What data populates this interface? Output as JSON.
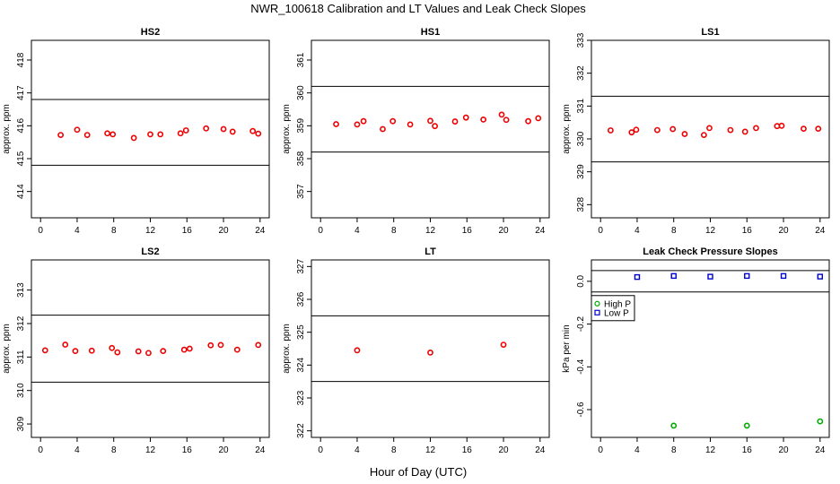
{
  "title": "NWR_100618  Calibration and LT Values and Leak Check Slopes",
  "xlabel": "Hour of Day (UTC)",
  "colors": {
    "point": "#ee0000",
    "high": "#00aa00",
    "low": "#0000cc",
    "line": "#000000"
  },
  "chart_data": [
    {
      "type": "scatter",
      "title": "HS2",
      "ylabel": "approx. ppm",
      "xlim": [
        -1,
        25
      ],
      "ylim": [
        413.2,
        418.6
      ],
      "xticks": [
        0,
        4,
        8,
        12,
        16,
        20,
        24
      ],
      "yticks": [
        414,
        415,
        416,
        417,
        418
      ],
      "hlines": [
        414.8,
        416.8
      ],
      "series": [
        {
          "color": "point",
          "x": [
            2.2,
            4.0,
            5.1,
            7.3,
            7.9,
            10.2,
            12.0,
            13.1,
            15.3,
            15.9,
            18.1,
            20.0,
            21.0,
            23.2,
            23.8
          ],
          "y": [
            415.72,
            415.88,
            415.72,
            415.77,
            415.74,
            415.63,
            415.74,
            415.74,
            415.77,
            415.86,
            415.92,
            415.9,
            415.82,
            415.84,
            415.76
          ]
        }
      ]
    },
    {
      "type": "scatter",
      "title": "HS1",
      "ylabel": "approx. ppm",
      "xlim": [
        -1,
        25
      ],
      "ylim": [
        356.2,
        361.6
      ],
      "xticks": [
        0,
        4,
        8,
        12,
        16,
        20,
        24
      ],
      "yticks": [
        357,
        358,
        359,
        360,
        361
      ],
      "hlines": [
        358.2,
        360.2
      ],
      "series": [
        {
          "color": "point",
          "x": [
            1.7,
            4.0,
            4.7,
            6.8,
            7.9,
            9.8,
            12.0,
            12.5,
            14.7,
            15.9,
            17.8,
            19.8,
            20.3,
            22.7,
            23.8
          ],
          "y": [
            359.05,
            359.04,
            359.14,
            358.9,
            359.14,
            359.04,
            359.15,
            358.99,
            359.13,
            359.25,
            359.19,
            359.34,
            359.18,
            359.14,
            359.23
          ]
        }
      ]
    },
    {
      "type": "scatter",
      "title": "LS1",
      "ylabel": "approx. ppm",
      "xlim": [
        -1,
        25
      ],
      "ylim": [
        327.6,
        333.0
      ],
      "xticks": [
        0,
        4,
        8,
        12,
        16,
        20,
        24
      ],
      "yticks": [
        328,
        329,
        330,
        331,
        332,
        333
      ],
      "hlines": [
        329.3,
        331.3
      ],
      "series": [
        {
          "color": "point",
          "x": [
            1.1,
            3.4,
            3.9,
            6.2,
            7.9,
            9.2,
            11.3,
            11.9,
            14.2,
            15.8,
            17.0,
            19.3,
            19.8,
            22.2,
            23.8
          ],
          "y": [
            330.26,
            330.2,
            330.28,
            330.27,
            330.3,
            330.15,
            330.12,
            330.33,
            330.27,
            330.22,
            330.33,
            330.39,
            330.4,
            330.31,
            330.31
          ]
        }
      ]
    },
    {
      "type": "scatter",
      "title": "LS2",
      "ylabel": "approx. ppm",
      "xlim": [
        -1,
        25
      ],
      "ylim": [
        308.6,
        313.9
      ],
      "xticks": [
        0,
        4,
        8,
        12,
        16,
        20,
        24
      ],
      "yticks": [
        309,
        310,
        311,
        312,
        313
      ],
      "hlines": [
        310.25,
        312.25
      ],
      "series": [
        {
          "color": "point",
          "x": [
            0.5,
            2.7,
            3.8,
            5.6,
            7.8,
            8.4,
            10.7,
            11.8,
            13.4,
            15.7,
            16.3,
            18.6,
            19.7,
            21.5,
            23.8
          ],
          "y": [
            311.2,
            311.37,
            311.18,
            311.19,
            311.27,
            311.14,
            311.17,
            311.12,
            311.18,
            311.22,
            311.25,
            311.35,
            311.36,
            311.22,
            311.36
          ]
        }
      ]
    },
    {
      "type": "scatter",
      "title": "LT",
      "ylabel": "approx. ppm",
      "xlim": [
        -1,
        25
      ],
      "ylim": [
        321.8,
        327.2
      ],
      "xticks": [
        0,
        4,
        8,
        12,
        16,
        20,
        24
      ],
      "yticks": [
        322,
        323,
        324,
        325,
        326,
        327
      ],
      "hlines": [
        323.5,
        325.5
      ],
      "series": [
        {
          "color": "point",
          "x": [
            4.0,
            12.0,
            20.0
          ],
          "y": [
            324.45,
            324.38,
            324.62
          ]
        }
      ]
    },
    {
      "type": "scatter",
      "title": "Leak Check Pressure Slopes",
      "ylabel": "kPa per min",
      "xlim": [
        -1,
        25
      ],
      "ylim": [
        -0.73,
        0.1
      ],
      "xticks": [
        0,
        4,
        8,
        12,
        16,
        20,
        24
      ],
      "yticks": [
        -0.6,
        -0.4,
        -0.2,
        0.0
      ],
      "yticklabels": [
        "-0.6",
        "-0.4",
        "-0.2",
        "0.0"
      ],
      "hlines": [
        -0.05,
        0.05
      ],
      "legend": {
        "position": "top-left",
        "entries": [
          {
            "label": "High P",
            "color": "high"
          },
          {
            "label": "Low P",
            "color": "low"
          }
        ]
      },
      "series": [
        {
          "name": "High P",
          "color": "high",
          "x": [
            8,
            16,
            24
          ],
          "y": [
            -0.675,
            -0.675,
            -0.655
          ]
        },
        {
          "name": "Low P",
          "color": "low",
          "x": [
            4,
            8,
            12,
            16,
            20,
            24
          ],
          "y": [
            0.02,
            0.025,
            0.022,
            0.025,
            0.025,
            0.022
          ]
        }
      ]
    }
  ]
}
